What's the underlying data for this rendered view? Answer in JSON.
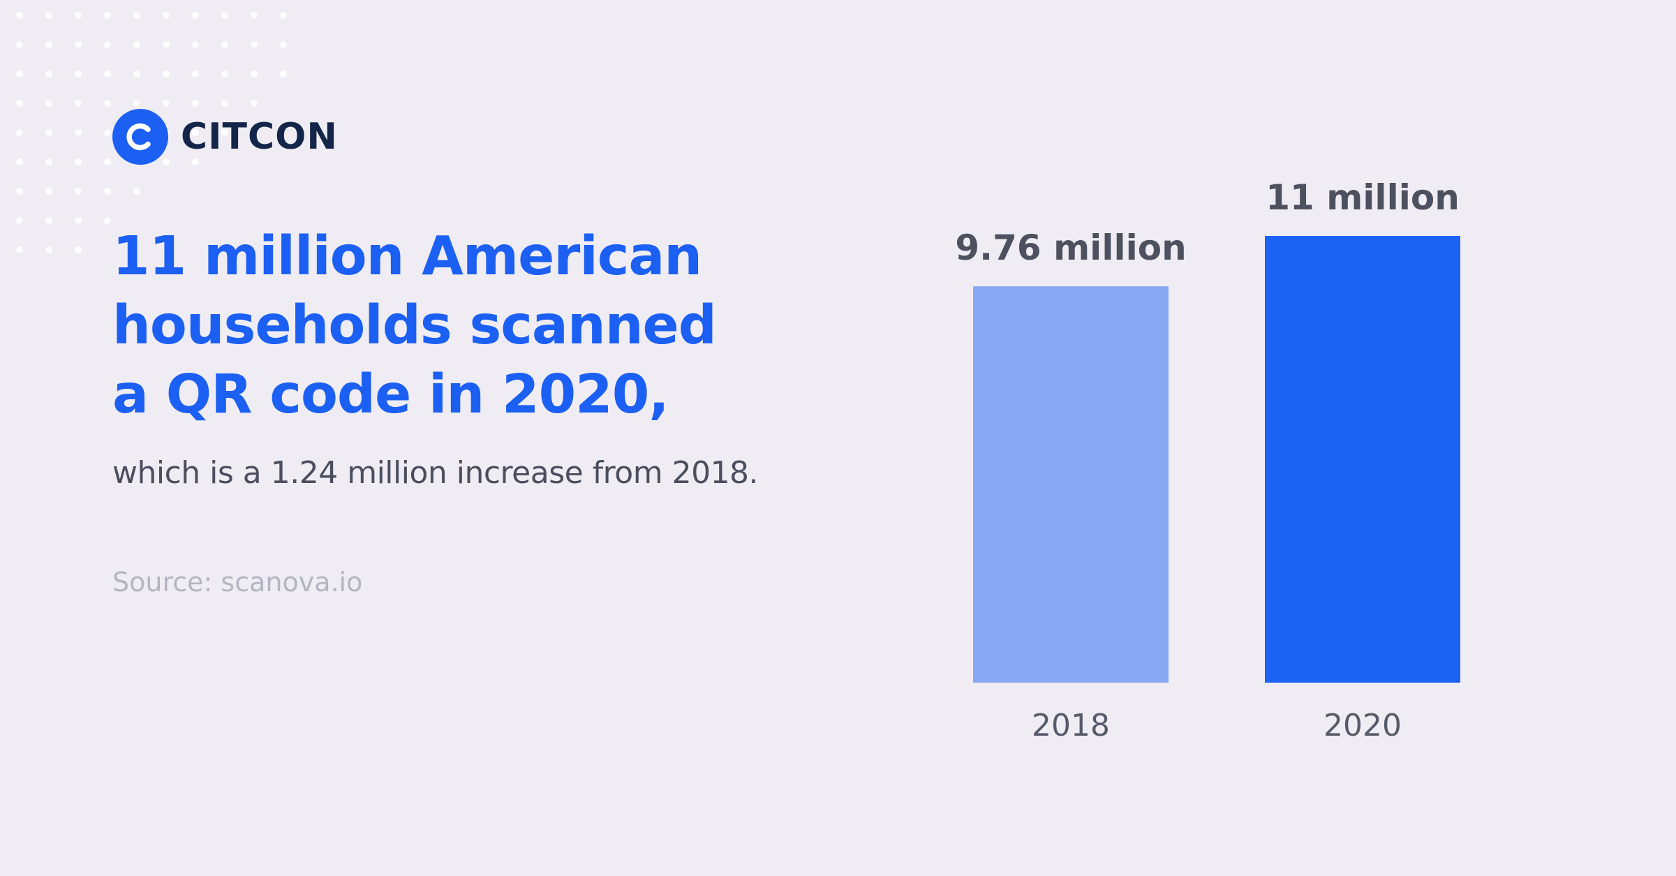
{
  "brand": {
    "name": "CITCON",
    "color": "#1c5ff3",
    "text_color": "#14254a"
  },
  "headline": [
    "11 million American",
    "households scanned",
    "a QR code in 2020,"
  ],
  "subline": "which is a 1.24 million increase from 2018.",
  "source": "Source: scanova.io",
  "chart_data": {
    "type": "bar",
    "title": "",
    "xlabel": "",
    "ylabel": "",
    "categories": [
      "2018",
      "2020"
    ],
    "values": [
      9.76,
      11
    ],
    "data_labels": [
      "9.76 million",
      "11 million"
    ],
    "bar_colors": [
      "#89a8f4",
      "#1c63f4"
    ],
    "ylim": [
      0,
      11
    ],
    "grid": false,
    "legend": "none"
  }
}
